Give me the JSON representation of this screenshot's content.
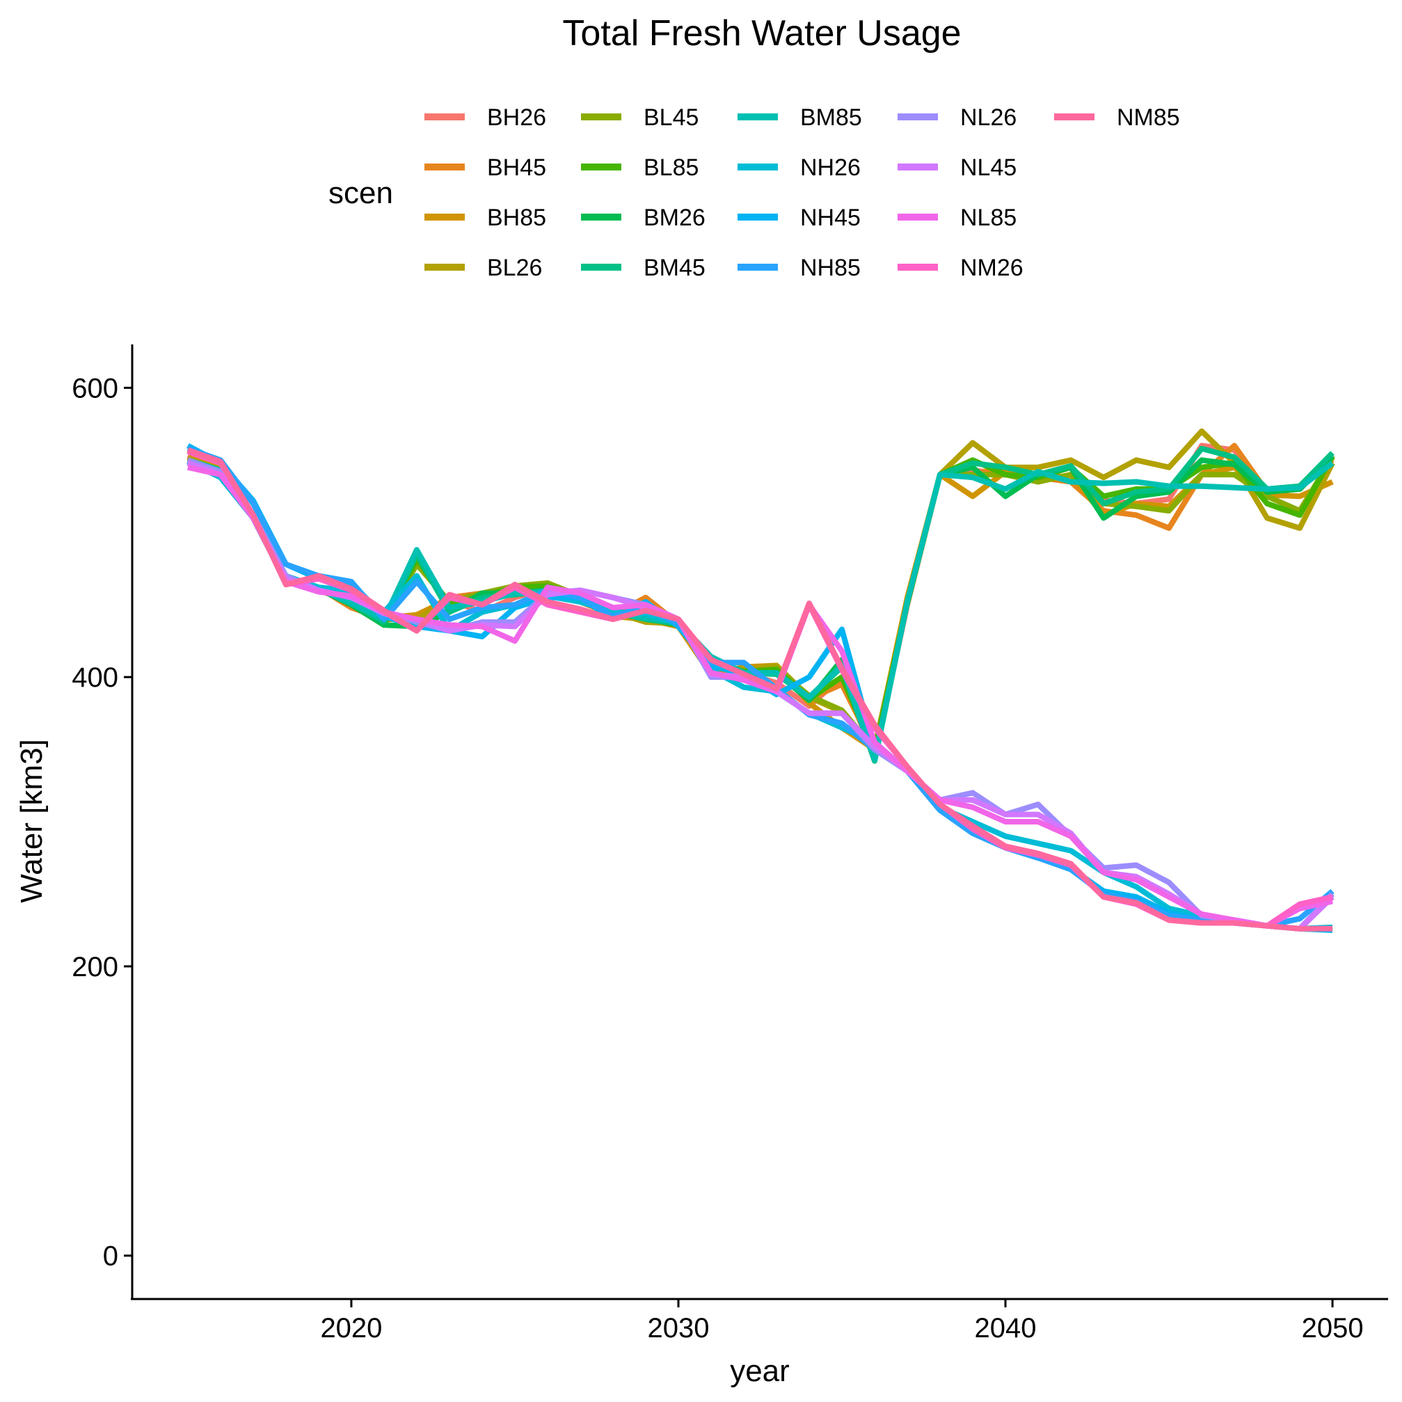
{
  "chart_data": {
    "type": "line",
    "title": "Total Fresh Water Usage",
    "xlabel": "year",
    "ylabel": "Water [km3]",
    "xlim": [
      2013.3,
      2051.7
    ],
    "ylim": [
      -30,
      630
    ],
    "xticks": [
      2020,
      2030,
      2040,
      2050
    ],
    "yticks": [
      0,
      200,
      400,
      600
    ],
    "grid": false,
    "legend_title": "scen",
    "legend_position": "top",
    "x": [
      2015,
      2016,
      2017,
      2018,
      2019,
      2020,
      2021,
      2022,
      2023,
      2024,
      2025,
      2026,
      2027,
      2028,
      2029,
      2030,
      2031,
      2032,
      2033,
      2034,
      2035,
      2036,
      2037,
      2038,
      2039,
      2040,
      2041,
      2042,
      2043,
      2044,
      2045,
      2046,
      2047,
      2048,
      2049,
      2050
    ],
    "series": [
      {
        "name": "BH26",
        "color": "#F8766D",
        "values": [
          553,
          545,
          512,
          466,
          462,
          457,
          440,
          443,
          453,
          445,
          455,
          462,
          455,
          447,
          442,
          438,
          410,
          403,
          396,
          380,
          400,
          345,
          450,
          540,
          543,
          540,
          540,
          538,
          522,
          520,
          523,
          560,
          557,
          528,
          530,
          552
        ]
      },
      {
        "name": "BH45",
        "color": "#E7851E",
        "values": [
          552,
          544,
          511,
          467,
          462,
          448,
          440,
          442,
          455,
          458,
          460,
          458,
          452,
          443,
          455,
          437,
          405,
          398,
          405,
          385,
          395,
          350,
          452,
          540,
          540,
          545,
          538,
          535,
          515,
          512,
          503,
          540,
          560,
          528,
          532,
          550
        ]
      },
      {
        "name": "BH85",
        "color": "#D09400",
        "values": [
          550,
          543,
          510,
          466,
          461,
          450,
          441,
          443,
          454,
          457,
          462,
          456,
          454,
          442,
          440,
          435,
          402,
          407,
          408,
          382,
          365,
          350,
          455,
          540,
          525,
          542,
          535,
          540,
          512,
          520,
          518,
          540,
          545,
          526,
          525,
          535
        ]
      },
      {
        "name": "BL26",
        "color": "#B2A100",
        "values": [
          551,
          544,
          511,
          466,
          460,
          452,
          440,
          440,
          453,
          455,
          460,
          463,
          455,
          445,
          438,
          437,
          408,
          405,
          408,
          386,
          376,
          351,
          452,
          540,
          562,
          545,
          545,
          550,
          538,
          550,
          545,
          570,
          548,
          510,
          503,
          548
        ]
      },
      {
        "name": "BL45",
        "color": "#89AC00",
        "values": [
          550,
          543,
          510,
          466,
          461,
          451,
          437,
          478,
          452,
          458,
          463,
          465,
          456,
          446,
          440,
          436,
          410,
          403,
          406,
          387,
          377,
          350,
          451,
          540,
          540,
          540,
          535,
          540,
          520,
          518,
          515,
          540,
          540,
          525,
          515,
          552
        ]
      },
      {
        "name": "BL85",
        "color": "#45B500",
        "values": [
          550,
          543,
          510,
          466,
          461,
          451,
          436,
          482,
          450,
          456,
          462,
          463,
          457,
          445,
          440,
          438,
          411,
          404,
          405,
          385,
          400,
          348,
          451,
          540,
          550,
          540,
          538,
          545,
          525,
          530,
          530,
          545,
          548,
          520,
          512,
          553
        ]
      },
      {
        "name": "BM26",
        "color": "#00BC51",
        "values": [
          550,
          543,
          510,
          466,
          461,
          450,
          436,
          435,
          445,
          458,
          458,
          460,
          457,
          445,
          441,
          436,
          412,
          402,
          403,
          384,
          412,
          343,
          452,
          540,
          545,
          525,
          540,
          545,
          510,
          525,
          528,
          550,
          547,
          528,
          530,
          553
        ]
      },
      {
        "name": "BM45",
        "color": "#00C087",
        "values": [
          550,
          543,
          510,
          466,
          461,
          451,
          438,
          485,
          445,
          455,
          457,
          460,
          456,
          445,
          440,
          437,
          414,
          403,
          402,
          386,
          407,
          342,
          452,
          540,
          548,
          545,
          540,
          546,
          520,
          528,
          530,
          558,
          552,
          530,
          532,
          555
        ]
      },
      {
        "name": "BM85",
        "color": "#00C0B2",
        "values": [
          550,
          543,
          510,
          466,
          461,
          451,
          440,
          488,
          448,
          452,
          458,
          459,
          456,
          445,
          441,
          438,
          414,
          403,
          403,
          386,
          408,
          343,
          452,
          540,
          538,
          530,
          542,
          535,
          534,
          535,
          532,
          532,
          531,
          530,
          531,
          548
        ]
      },
      {
        "name": "NH26",
        "color": "#00BCD6",
        "values": [
          549,
          538,
          510,
          470,
          462,
          460,
          445,
          470,
          432,
          445,
          450,
          456,
          452,
          445,
          444,
          437,
          405,
          393,
          390,
          375,
          365,
          355,
          335,
          310,
          300,
          290,
          285,
          280,
          265,
          255,
          240,
          235,
          232,
          228,
          226,
          227
        ]
      },
      {
        "name": "NH45",
        "color": "#00B3F2",
        "values": [
          560,
          548,
          522,
          478,
          468,
          465,
          442,
          435,
          432,
          428,
          448,
          455,
          455,
          440,
          452,
          435,
          408,
          402,
          388,
          400,
          433,
          350,
          335,
          308,
          292,
          282,
          275,
          268,
          252,
          248,
          237,
          232,
          230,
          228,
          226,
          225
        ]
      },
      {
        "name": "NH85",
        "color": "#29A3FF",
        "values": [
          558,
          550,
          520,
          478,
          470,
          466,
          440,
          466,
          440,
          448,
          450,
          460,
          455,
          442,
          448,
          437,
          410,
          410,
          392,
          374,
          368,
          350,
          335,
          308,
          292,
          282,
          275,
          267,
          250,
          245,
          235,
          232,
          230,
          228,
          233,
          252
        ]
      },
      {
        "name": "NL26",
        "color": "#9C8DFF",
        "values": [
          550,
          542,
          512,
          470,
          460,
          455,
          445,
          438,
          432,
          438,
          438,
          458,
          460,
          455,
          450,
          440,
          400,
          400,
          390,
          375,
          375,
          350,
          335,
          315,
          320,
          305,
          312,
          290,
          268,
          270,
          258,
          235,
          232,
          228,
          226,
          250
        ]
      },
      {
        "name": "NL45",
        "color": "#D277FF",
        "values": [
          548,
          540,
          511,
          468,
          460,
          455,
          444,
          440,
          432,
          436,
          435,
          457,
          460,
          455,
          448,
          440,
          402,
          400,
          390,
          375,
          375,
          352,
          335,
          315,
          315,
          305,
          305,
          292,
          265,
          262,
          250,
          236,
          232,
          228,
          226,
          248
        ]
      },
      {
        "name": "NL85",
        "color": "#F166E8",
        "values": [
          545,
          540,
          510,
          466,
          459,
          456,
          445,
          440,
          436,
          435,
          425,
          462,
          458,
          448,
          450,
          440,
          403,
          398,
          390,
          450,
          418,
          355,
          335,
          315,
          310,
          300,
          300,
          290,
          265,
          260,
          248,
          236,
          232,
          228,
          240,
          245
        ]
      },
      {
        "name": "NM26",
        "color": "#FF61C7",
        "values": [
          556,
          548,
          512,
          464,
          468,
          460,
          445,
          432,
          455,
          450,
          462,
          450,
          445,
          440,
          446,
          440,
          412,
          402,
          392,
          450,
          405,
          365,
          338,
          312,
          295,
          282,
          277,
          270,
          248,
          243,
          232,
          230,
          230,
          228,
          243,
          248
        ]
      },
      {
        "name": "NM85",
        "color": "#FF689E",
        "values": [
          557,
          549,
          512,
          464,
          470,
          461,
          446,
          432,
          457,
          450,
          464,
          452,
          447,
          440,
          446,
          440,
          412,
          402,
          392,
          451,
          406,
          367,
          338,
          312,
          297,
          283,
          278,
          271,
          248,
          244,
          232,
          230,
          230,
          228,
          226,
          226
        ]
      }
    ]
  }
}
